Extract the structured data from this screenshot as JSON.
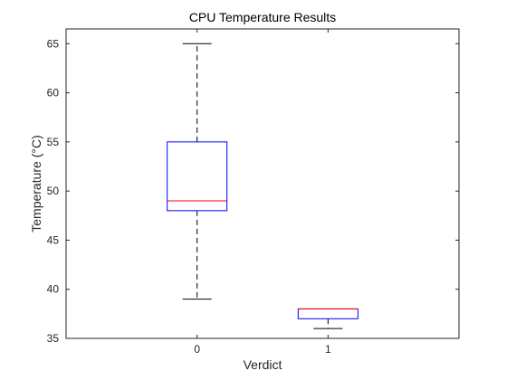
{
  "chart_data": {
    "type": "box",
    "title": "CPU Temperature Results",
    "xlabel": "Verdict",
    "ylabel": "Temperature (°C)",
    "categories": [
      "0",
      "1"
    ],
    "ylim": [
      35,
      66.5
    ],
    "yticks": [
      35,
      40,
      45,
      50,
      55,
      60,
      65
    ],
    "grid": false,
    "boxes": [
      {
        "category": "0",
        "whisker_low": 39,
        "q1": 48,
        "median": 49,
        "q3": 55,
        "whisker_high": 65
      },
      {
        "category": "1",
        "whisker_low": 36,
        "q1": 37,
        "median": 38,
        "q3": 38,
        "whisker_high": 38
      }
    ],
    "colors": {
      "box": "#0000ff",
      "median": "#ff0000",
      "whisker": "#000000",
      "axis": "#262626"
    }
  }
}
